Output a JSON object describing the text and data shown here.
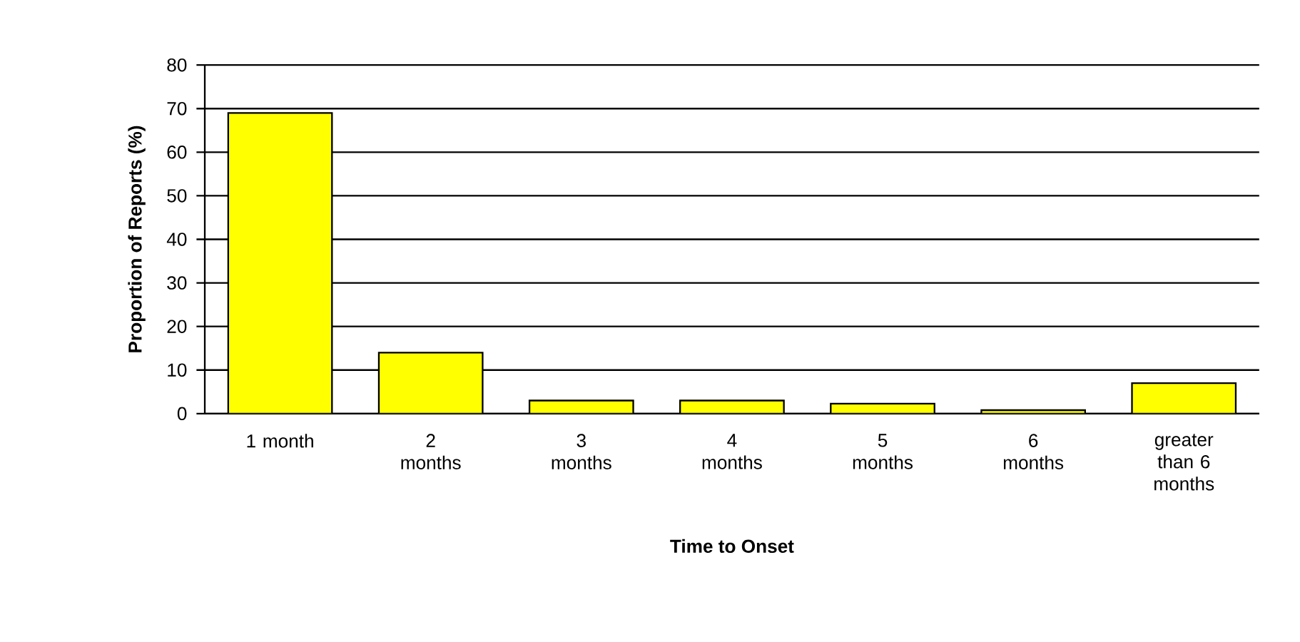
{
  "chart_data": {
    "type": "bar",
    "xlabel": "Time to Onset",
    "ylabel": "Proportion of Reports (%)",
    "categories": [
      "1 month",
      "2 months",
      "3 months",
      "4 months",
      "5 months",
      "6 months",
      "greater than 6 months"
    ],
    "values": [
      69,
      14,
      3,
      3,
      2.3,
      0.8,
      7
    ],
    "color": "#ffff00",
    "ylim": [
      0,
      80
    ],
    "yticks": [
      0,
      10,
      20,
      30,
      40,
      50,
      60,
      70,
      80
    ],
    "grid": "y"
  }
}
